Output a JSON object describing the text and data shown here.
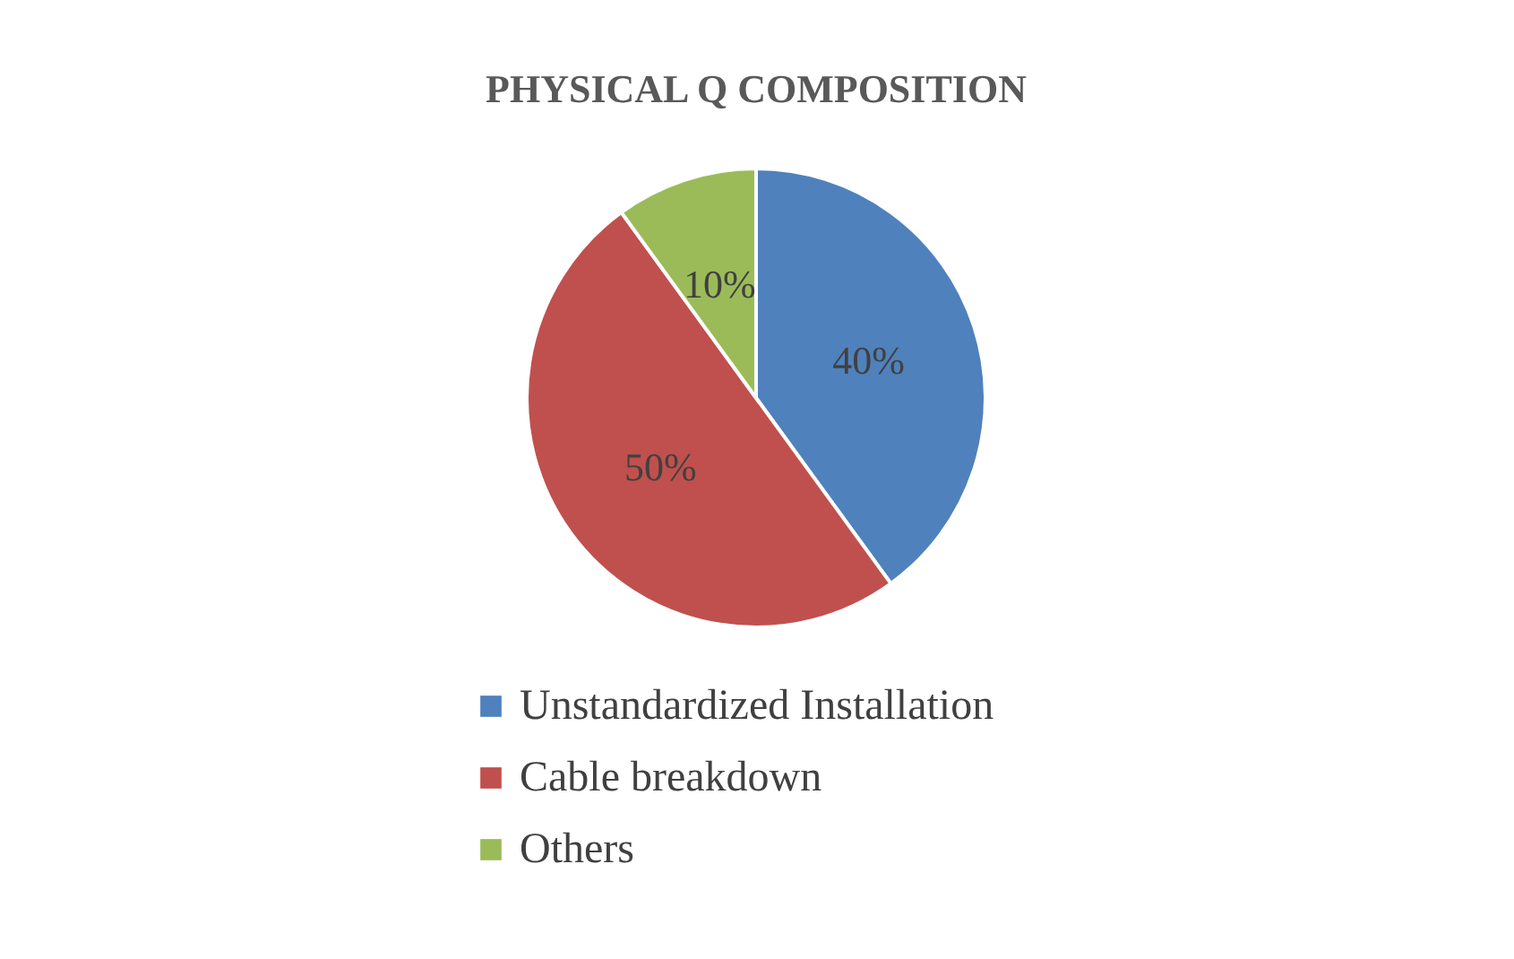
{
  "chart_data": {
    "type": "pie",
    "title": "PHYSICAL Q COMPOSITION",
    "categories": [
      "Unstandardized Installation",
      "Cable breakdown",
      "Others"
    ],
    "values": [
      40,
      50,
      10
    ],
    "colors": [
      "#4f81bd",
      "#c0504d",
      "#9bbb59"
    ],
    "value_labels": [
      "40%",
      "50%",
      "10%"
    ],
    "legend": "bottom"
  }
}
